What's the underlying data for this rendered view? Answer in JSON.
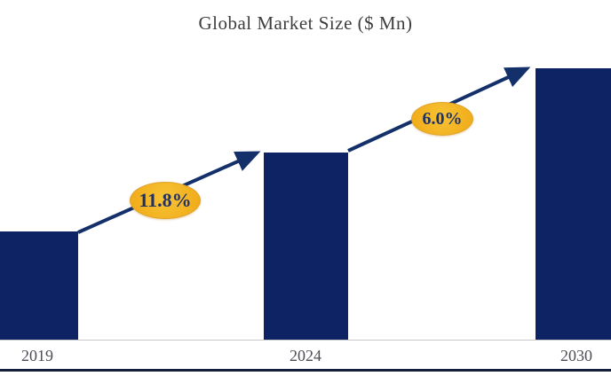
{
  "chart_data": {
    "type": "bar",
    "title": "Global Market Size ($ Mn)",
    "categories": [
      "2019",
      "2024",
      "2030"
    ],
    "series": [
      {
        "name": "Global Market Size",
        "relative_values": [
          0.4,
          0.69,
          1.0
        ]
      }
    ],
    "value_axis_shown": false,
    "value_labels_shown": false,
    "grid": false,
    "annotations": [
      {
        "label": "11.8%",
        "type": "growth-arrow",
        "from": "2019",
        "to": "2024"
      },
      {
        "label": "6.0%",
        "type": "growth-arrow",
        "from": "2024",
        "to": "2030"
      }
    ],
    "colors": {
      "bar": "#0e2363",
      "arrow": "#14306b",
      "annotation_bubble": "#f2b01e",
      "annotation_text": "#203166",
      "title_text": "#3e3e3e",
      "tick_text": "#4d4d55",
      "axis_line": "#c8c8c8",
      "bottom_rule": "#131f3d"
    }
  }
}
